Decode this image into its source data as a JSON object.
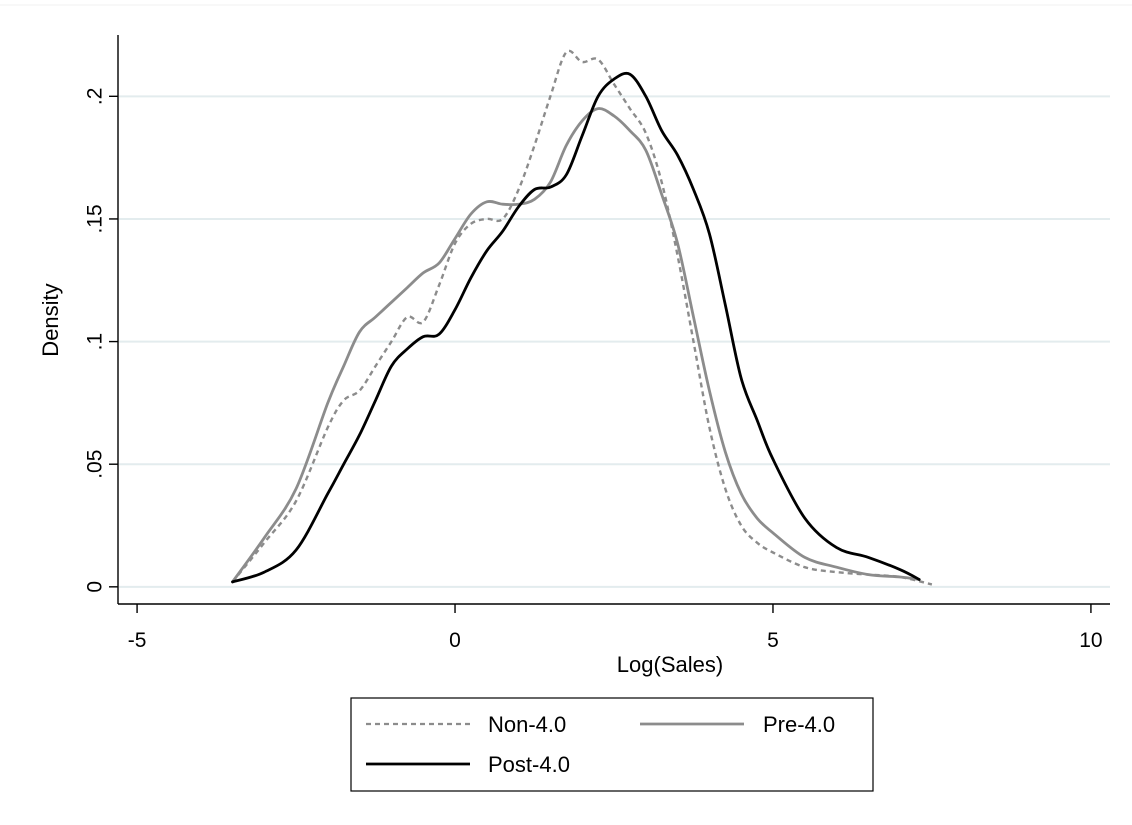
{
  "chart_data": {
    "type": "line",
    "xlabel": "Log(Sales)",
    "ylabel": "Density",
    "xlim": [
      -5.3,
      10.3
    ],
    "ylim": [
      -0.007,
      0.225
    ],
    "xticks": [
      -5,
      0,
      5,
      10
    ],
    "xtick_labels": [
      "-5",
      "0",
      "5",
      "10"
    ],
    "yticks": [
      0,
      0.05,
      0.1,
      0.15,
      0.2
    ],
    "ytick_labels": [
      "0",
      ".05",
      ".1",
      ".15",
      ".2"
    ],
    "grid": "horizontal",
    "legend_position": "bottom",
    "series": [
      {
        "name": "Non-4.0",
        "color": "#8c8c8c",
        "style": "dashed",
        "x": [
          -3.5,
          -3.0,
          -2.5,
          -2.0,
          -1.75,
          -1.5,
          -1.25,
          -1.0,
          -0.75,
          -0.5,
          -0.25,
          0.0,
          0.25,
          0.5,
          0.75,
          1.0,
          1.25,
          1.5,
          1.75,
          2.0,
          2.25,
          2.5,
          2.75,
          3.0,
          3.25,
          3.5,
          3.75,
          4.0,
          4.25,
          4.5,
          4.75,
          5.0,
          5.5,
          6.0,
          6.5,
          7.0,
          7.5
        ],
        "y": [
          0.002,
          0.018,
          0.035,
          0.065,
          0.076,
          0.08,
          0.09,
          0.1,
          0.11,
          0.108,
          0.123,
          0.14,
          0.148,
          0.15,
          0.15,
          0.162,
          0.18,
          0.2,
          0.218,
          0.214,
          0.215,
          0.205,
          0.195,
          0.185,
          0.165,
          0.135,
          0.1,
          0.065,
          0.04,
          0.025,
          0.018,
          0.014,
          0.008,
          0.006,
          0.005,
          0.004,
          0.001
        ]
      },
      {
        "name": "Pre-4.0",
        "color": "#8c8c8c",
        "style": "solid",
        "x": [
          -3.5,
          -3.0,
          -2.5,
          -2.0,
          -1.75,
          -1.5,
          -1.25,
          -1.0,
          -0.75,
          -0.5,
          -0.25,
          0.0,
          0.25,
          0.5,
          0.75,
          1.0,
          1.25,
          1.5,
          1.75,
          2.0,
          2.25,
          2.5,
          2.75,
          3.0,
          3.25,
          3.5,
          3.75,
          4.0,
          4.25,
          4.5,
          4.75,
          5.0,
          5.5,
          6.0,
          6.5,
          7.0,
          7.3
        ],
        "y": [
          0.002,
          0.02,
          0.04,
          0.075,
          0.09,
          0.104,
          0.11,
          0.116,
          0.122,
          0.128,
          0.132,
          0.142,
          0.152,
          0.157,
          0.156,
          0.156,
          0.158,
          0.165,
          0.18,
          0.19,
          0.195,
          0.192,
          0.186,
          0.178,
          0.16,
          0.14,
          0.11,
          0.08,
          0.055,
          0.038,
          0.028,
          0.022,
          0.012,
          0.008,
          0.005,
          0.004,
          0.003
        ]
      },
      {
        "name": "Post-4.0",
        "color": "#000000",
        "style": "solid",
        "x": [
          -3.5,
          -3.0,
          -2.5,
          -2.0,
          -1.75,
          -1.5,
          -1.25,
          -1.0,
          -0.75,
          -0.5,
          -0.25,
          0.0,
          0.25,
          0.5,
          0.75,
          1.0,
          1.25,
          1.5,
          1.75,
          2.0,
          2.25,
          2.5,
          2.75,
          3.0,
          3.25,
          3.5,
          3.75,
          4.0,
          4.25,
          4.5,
          4.75,
          5.0,
          5.5,
          6.0,
          6.5,
          7.0,
          7.3
        ],
        "y": [
          0.002,
          0.006,
          0.015,
          0.038,
          0.05,
          0.062,
          0.076,
          0.09,
          0.097,
          0.102,
          0.103,
          0.113,
          0.126,
          0.137,
          0.145,
          0.155,
          0.162,
          0.163,
          0.168,
          0.184,
          0.2,
          0.207,
          0.209,
          0.2,
          0.186,
          0.176,
          0.162,
          0.144,
          0.115,
          0.085,
          0.068,
          0.052,
          0.028,
          0.016,
          0.012,
          0.007,
          0.003
        ]
      }
    ]
  }
}
